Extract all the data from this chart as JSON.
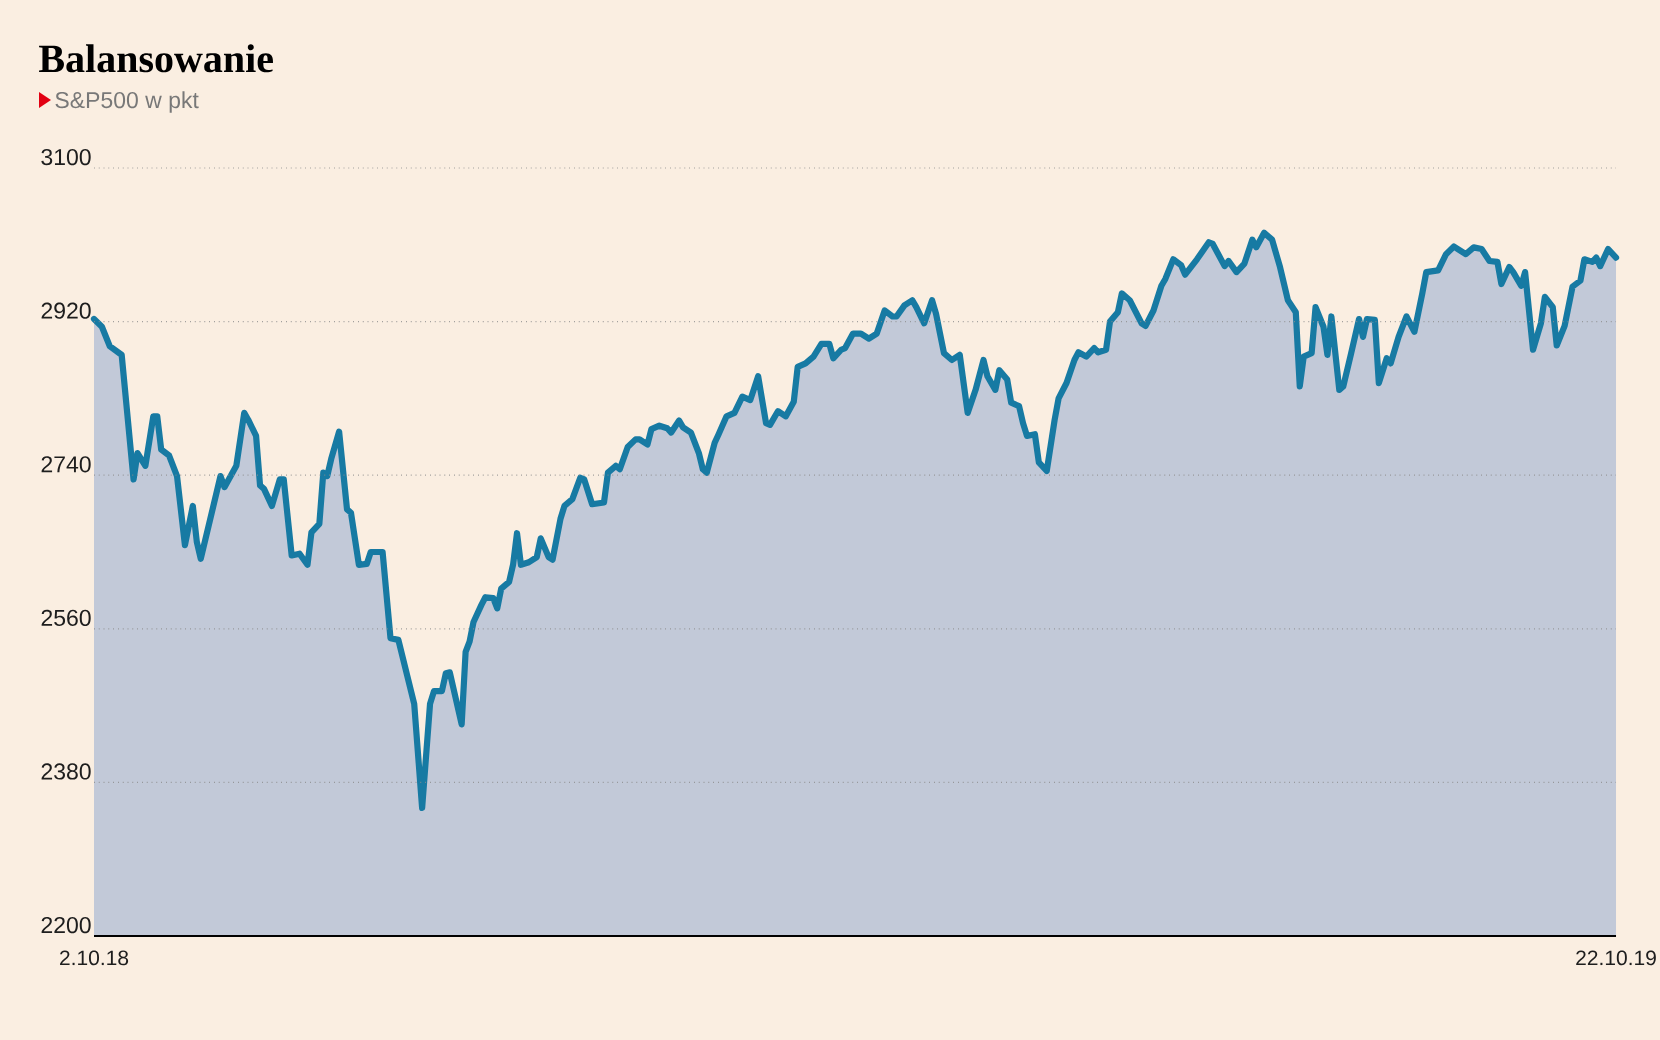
{
  "chart_data": {
    "type": "area",
    "title": "Balansowanie",
    "subtitle": "S&P500 w pkt",
    "x": [
      "2018-10-02",
      "2018-10-04",
      "2018-10-06",
      "2018-10-09",
      "2018-10-12",
      "2018-10-13",
      "2018-10-15",
      "2018-10-17",
      "2018-10-18",
      "2018-10-19",
      "2018-10-21",
      "2018-10-23",
      "2018-10-25",
      "2018-10-27",
      "2018-10-28",
      "2018-10-29",
      "2018-11-03",
      "2018-11-04",
      "2018-11-07",
      "2018-11-09",
      "2018-11-10",
      "2018-11-12",
      "2018-11-13",
      "2018-11-14",
      "2018-11-16",
      "2018-11-18",
      "2018-11-19",
      "2018-11-21",
      "2018-11-23",
      "2018-11-25",
      "2018-11-26",
      "2018-11-28",
      "2018-11-29",
      "2018-11-30",
      "2018-12-01",
      "2018-12-03",
      "2018-12-05",
      "2018-12-06",
      "2018-12-08",
      "2018-12-10",
      "2018-12-11",
      "2018-12-14",
      "2018-12-16",
      "2018-12-18",
      "2018-12-22",
      "2018-12-24",
      "2018-12-26",
      "2018-12-27",
      "2018-12-29",
      "2018-12-30",
      "2018-12-31",
      "2019-01-03",
      "2019-01-04",
      "2019-01-05",
      "2019-01-06",
      "2019-01-08",
      "2019-01-09",
      "2019-01-11",
      "2019-01-12",
      "2019-01-13",
      "2019-01-15",
      "2019-01-16",
      "2019-01-17",
      "2019-01-18",
      "2019-01-20",
      "2019-01-22",
      "2019-01-23",
      "2019-01-25",
      "2019-01-26",
      "2019-01-28",
      "2019-01-29",
      "2019-01-31",
      "2019-02-02",
      "2019-02-03",
      "2019-02-05",
      "2019-02-08",
      "2019-02-09",
      "2019-02-11",
      "2019-02-12",
      "2019-02-14",
      "2019-02-16",
      "2019-02-17",
      "2019-02-19",
      "2019-02-20",
      "2019-02-22",
      "2019-02-24",
      "2019-02-25",
      "2019-02-27",
      "2019-02-28",
      "2019-03-02",
      "2019-03-04",
      "2019-03-05",
      "2019-03-06",
      "2019-03-08",
      "2019-03-09",
      "2019-03-11",
      "2019-03-13",
      "2019-03-15",
      "2019-03-17",
      "2019-03-19",
      "2019-03-21",
      "2019-03-22",
      "2019-03-24",
      "2019-03-26",
      "2019-03-28",
      "2019-03-29",
      "2019-03-31",
      "2019-04-02",
      "2019-04-04",
      "2019-04-06",
      "2019-04-07",
      "2019-04-09",
      "2019-04-10",
      "2019-04-12",
      "2019-04-14",
      "2019-04-16",
      "2019-04-18",
      "2019-04-20",
      "2019-04-22",
      "2019-04-23",
      "2019-04-25",
      "2019-04-27",
      "2019-04-28",
      "2019-04-30",
      "2019-05-02",
      "2019-05-03",
      "2019-05-05",
      "2019-05-07",
      "2019-05-09",
      "2019-05-11",
      "2019-05-13",
      "2019-05-15",
      "2019-05-16",
      "2019-05-18",
      "2019-05-19",
      "2019-05-21",
      "2019-05-22",
      "2019-05-24",
      "2019-05-25",
      "2019-05-26",
      "2019-05-28",
      "2019-05-29",
      "2019-05-31",
      "2019-06-02",
      "2019-06-03",
      "2019-06-05",
      "2019-06-07",
      "2019-06-08",
      "2019-06-10",
      "2019-06-12",
      "2019-06-13",
      "2019-06-15",
      "2019-06-16",
      "2019-06-18",
      "2019-06-19",
      "2019-06-21",
      "2019-06-24",
      "2019-06-25",
      "2019-06-27",
      "2019-06-29",
      "2019-06-30",
      "2019-07-02",
      "2019-07-04",
      "2019-07-05",
      "2019-07-08",
      "2019-07-11",
      "2019-07-12",
      "2019-07-15",
      "2019-07-16",
      "2019-07-18",
      "2019-07-20",
      "2019-07-22",
      "2019-07-23",
      "2019-07-25",
      "2019-07-27",
      "2019-07-29",
      "2019-07-31",
      "2019-08-02",
      "2019-08-03",
      "2019-08-04",
      "2019-08-06",
      "2019-08-07",
      "2019-08-09",
      "2019-08-10",
      "2019-08-11",
      "2019-08-13",
      "2019-08-14",
      "2019-08-16",
      "2019-08-18",
      "2019-08-19",
      "2019-08-20",
      "2019-08-22",
      "2019-08-23",
      "2019-08-25",
      "2019-08-26",
      "2019-08-28",
      "2019-08-30",
      "2019-09-01",
      "2019-09-03",
      "2019-09-04",
      "2019-09-07",
      "2019-09-09",
      "2019-09-11",
      "2019-09-12",
      "2019-09-14",
      "2019-09-16",
      "2019-09-18",
      "2019-09-20",
      "2019-09-22",
      "2019-09-23",
      "2019-09-25",
      "2019-09-26",
      "2019-09-28",
      "2019-09-29",
      "2019-10-01",
      "2019-10-03",
      "2019-10-04",
      "2019-10-06",
      "2019-10-07",
      "2019-10-09",
      "2019-10-11",
      "2019-10-13",
      "2019-10-14",
      "2019-10-16",
      "2019-10-17",
      "2019-10-18",
      "2019-10-20",
      "2019-10-22"
    ],
    "values": [
      2923,
      2914,
      2891,
      2881,
      2735,
      2766,
      2751,
      2809,
      2809,
      2770,
      2763,
      2739,
      2658,
      2704,
      2662,
      2642,
      2739,
      2726,
      2751,
      2813,
      2805,
      2786,
      2728,
      2724,
      2704,
      2735,
      2735,
      2646,
      2648,
      2635,
      2673,
      2683,
      2743,
      2739,
      2759,
      2791,
      2700,
      2696,
      2635,
      2636,
      2650,
      2650,
      2549,
      2547,
      2472,
      2350,
      2472,
      2487,
      2487,
      2508,
      2509,
      2448,
      2533,
      2545,
      2568,
      2588,
      2597,
      2596,
      2584,
      2607,
      2615,
      2635,
      2672,
      2635,
      2638,
      2644,
      2666,
      2644,
      2641,
      2689,
      2704,
      2712,
      2737,
      2735,
      2706,
      2708,
      2743,
      2751,
      2747,
      2773,
      2782,
      2782,
      2776,
      2794,
      2798,
      2795,
      2790,
      2804,
      2796,
      2790,
      2766,
      2747,
      2743,
      2778,
      2788,
      2809,
      2813,
      2832,
      2828,
      2856,
      2801,
      2799,
      2815,
      2809,
      2826,
      2867,
      2871,
      2879,
      2894,
      2894,
      2877,
      2887,
      2889,
      2906,
      2906,
      2900,
      2906,
      2933,
      2926,
      2926,
      2939,
      2945,
      2937,
      2918,
      2945,
      2929,
      2883,
      2875,
      2881,
      2813,
      2840,
      2875,
      2856,
      2840,
      2863,
      2852,
      2825,
      2821,
      2801,
      2786,
      2788,
      2755,
      2745,
      2805,
      2830,
      2848,
      2875,
      2884,
      2879,
      2889,
      2884,
      2887,
      2920,
      2931,
      2953,
      2945,
      2918,
      2915,
      2933,
      2962,
      2970,
      2993,
      2986,
      2975,
      2993,
      3013,
      3011,
      2985,
      2991,
      2978,
      2988,
      3016,
      3007,
      3024,
      3016,
      2984,
      2945,
      2931,
      2844,
      2879,
      2883,
      2937,
      2914,
      2881,
      2926,
      2840,
      2844,
      2883,
      2923,
      2902,
      2923,
      2922,
      2848,
      2877,
      2871,
      2902,
      2926,
      2908,
      2953,
      2978,
      2980,
      2999,
      3008,
      3005,
      2999,
      3007,
      3005,
      2991,
      2990,
      2964,
      2984,
      2978,
      2962,
      2978,
      2887,
      2918,
      2949,
      2937,
      2892,
      2915,
      2961,
      2968,
      2993,
      2990,
      2995,
      2985,
      3005,
      2995
    ],
    "color": "#177aa3",
    "xlim": [
      "2018-10-02",
      "2019-10-22"
    ],
    "xticks": [
      {
        "value": "2018-10-02",
        "label": "2.10.18"
      },
      {
        "value": "2019-10-22",
        "label": "22.10.19"
      }
    ],
    "ylim": [
      2200,
      3100
    ],
    "yticks": [
      2200,
      2380,
      2560,
      2740,
      2920,
      3100
    ],
    "grid": "y"
  }
}
